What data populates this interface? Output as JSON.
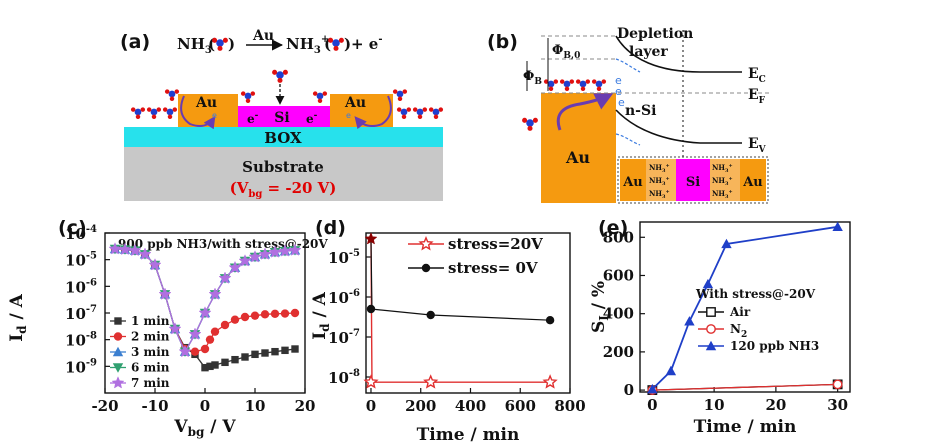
{
  "panel_labels": {
    "a": "(a)",
    "b": "(b)",
    "c": "(c)",
    "d": "(d)",
    "e": "(e)"
  },
  "panel_a": {
    "reaction": {
      "reactant": "NH",
      "reactant_sub": "3",
      "catalyst": "Au",
      "product": "NH",
      "product_sub": "3",
      "product_sup": "+",
      "electron": "+ e",
      "electron_sup": "-"
    },
    "au_left": "Au",
    "au_right": "Au",
    "si": "Si",
    "electron": "e",
    "electron_sup": "-",
    "box": "BOX",
    "substrate": "Substrate",
    "vbg_label": "(V",
    "vbg_sub": "bg",
    "vbg_value": " = -20 V)",
    "colors": {
      "au": "#f59a10",
      "si": "#ff00ff",
      "box": "#27e1ec",
      "substrate": "#c8c8c8",
      "vbg": "#e00000"
    }
  },
  "panel_b": {
    "phi_b0": "Φ",
    "phi_b0_sub": "B,0",
    "phi_b": "Φ",
    "phi_b_sub": "B",
    "depletion_1": "Depletion",
    "depletion_2": "layer",
    "ec": "E",
    "ec_sub": "C",
    "ef": "E",
    "ef_sub": "F",
    "ev": "E",
    "ev_sub": "V",
    "nsi": "n-Si",
    "au": "Au",
    "electron": "e",
    "inset": {
      "au_left": "Au",
      "si": "Si",
      "au_right": "Au",
      "nh": "NH",
      "nh_sub": "3",
      "nh_sup": "+"
    }
  },
  "chart_data": [
    {
      "panel": "c",
      "type": "line",
      "title": "900 ppb NH3/with stress@-20V",
      "xlabel": "Vbg / V",
      "ylabel": "Id / A",
      "xlim": [
        -20,
        20
      ],
      "ylim_log10": [
        -10,
        -4
      ],
      "xticks": [
        -20,
        -10,
        0,
        10,
        20
      ],
      "yticks": [
        -9,
        -8,
        -7,
        -6,
        -5,
        -4
      ],
      "ytick_labels": [
        "10",
        "10",
        "10",
        "10",
        "10",
        "10"
      ],
      "ytick_exps": [
        "-9",
        "-8",
        "-7",
        "-6",
        "-5",
        "-4"
      ],
      "series": [
        {
          "name": "1 min",
          "color": "#333333",
          "marker": "square",
          "x": [
            -18,
            -16,
            -14,
            -12,
            -10,
            -8,
            -6,
            -4,
            -2,
            0,
            1,
            2,
            4,
            6,
            8,
            10,
            12,
            14,
            16,
            18
          ],
          "y": [
            -4.6,
            -4.62,
            -4.66,
            -4.8,
            -5.2,
            -6.3,
            -7.6,
            -8.3,
            -8.55,
            -9.05,
            -9.0,
            -8.95,
            -8.85,
            -8.75,
            -8.65,
            -8.55,
            -8.5,
            -8.45,
            -8.4,
            -8.35
          ]
        },
        {
          "name": "2 min",
          "color": "#e03030",
          "marker": "circle",
          "x": [
            -18,
            -16,
            -14,
            -12,
            -10,
            -8,
            -6,
            -4,
            -2,
            0,
            1,
            2,
            4,
            6,
            8,
            10,
            12,
            14,
            16,
            18
          ],
          "y": [
            -4.6,
            -4.62,
            -4.66,
            -4.8,
            -5.2,
            -6.3,
            -7.6,
            -8.35,
            -8.45,
            -8.35,
            -8.0,
            -7.7,
            -7.45,
            -7.25,
            -7.15,
            -7.1,
            -7.05,
            -7.03,
            -7.02,
            -7.0
          ]
        },
        {
          "name": "3 min",
          "color": "#3b7fd0",
          "marker": "triangle",
          "x": [
            -18,
            -16,
            -14,
            -12,
            -10,
            -8,
            -6,
            -4,
            -2,
            0,
            2,
            4,
            6,
            8,
            10,
            12,
            14,
            16,
            18
          ],
          "y": [
            -4.6,
            -4.62,
            -4.66,
            -4.8,
            -5.2,
            -6.3,
            -7.6,
            -8.45,
            -7.8,
            -7.0,
            -6.3,
            -5.7,
            -5.3,
            -5.05,
            -4.9,
            -4.8,
            -4.72,
            -4.68,
            -4.65
          ]
        },
        {
          "name": "6 min",
          "color": "#30a070",
          "marker": "triangle-down",
          "x": [
            -18,
            -16,
            -14,
            -12,
            -10,
            -8,
            -6,
            -4,
            -2,
            0,
            2,
            4,
            6,
            8,
            10,
            12,
            14,
            16,
            18
          ],
          "y": [
            -4.6,
            -4.62,
            -4.66,
            -4.8,
            -5.2,
            -6.3,
            -7.6,
            -8.45,
            -7.8,
            -7.0,
            -6.3,
            -5.7,
            -5.3,
            -5.05,
            -4.9,
            -4.8,
            -4.72,
            -4.68,
            -4.65
          ]
        },
        {
          "name": "7 min",
          "color": "#b070e0",
          "marker": "star",
          "x": [
            -18,
            -16,
            -14,
            -12,
            -10,
            -8,
            -6,
            -4,
            -2,
            0,
            2,
            4,
            6,
            8,
            10,
            12,
            14,
            16,
            18
          ],
          "y": [
            -4.6,
            -4.62,
            -4.66,
            -4.8,
            -5.2,
            -6.3,
            -7.6,
            -8.45,
            -7.8,
            -7.0,
            -6.3,
            -5.7,
            -5.3,
            -5.05,
            -4.9,
            -4.8,
            -4.72,
            -4.68,
            -4.65
          ]
        }
      ]
    },
    {
      "panel": "d",
      "type": "line",
      "xlabel": "Time / min",
      "ylabel": "Id / A",
      "xlim": [
        -20,
        800
      ],
      "ylim_log10": [
        -8.4,
        -4.4
      ],
      "xticks": [
        0,
        200,
        400,
        600,
        800
      ],
      "yticks": [
        -8,
        -7,
        -6,
        -5
      ],
      "ytick_labels": [
        "10",
        "10",
        "10",
        "10"
      ],
      "ytick_exps": [
        "-8",
        "-7",
        "-6",
        "-5"
      ],
      "series": [
        {
          "name": "stress=20V",
          "color": "#e03030",
          "marker": "star-open",
          "x": [
            0,
            240,
            720
          ],
          "y": [
            -8.13,
            -8.13,
            -8.13
          ],
          "jump_from": -4.55
        },
        {
          "name": "stress= 0V",
          "color": "#111111",
          "marker": "circle",
          "x": [
            0,
            240,
            720
          ],
          "y": [
            -6.3,
            -6.45,
            -6.58
          ]
        }
      ],
      "highlight_point": {
        "x": 0,
        "y": -4.55,
        "color": "#8b0000"
      }
    },
    {
      "panel": "e",
      "type": "line",
      "legend_title": "With stress@-20V",
      "xlabel": "Time / min",
      "ylabel": "SI / %",
      "xlim": [
        -2,
        32
      ],
      "ylim": [
        -10,
        880
      ],
      "xticks": [
        0,
        10,
        20,
        30
      ],
      "yticks": [
        0,
        200,
        400,
        600,
        800
      ],
      "series": [
        {
          "name": "Air",
          "color": "#111111",
          "marker": "square-open",
          "x": [
            0,
            30
          ],
          "y": [
            0,
            30
          ]
        },
        {
          "name": "N2",
          "name_main": "N",
          "name_sub": "2",
          "color": "#e03030",
          "marker": "circle-open",
          "x": [
            0,
            30
          ],
          "y": [
            0,
            30
          ]
        },
        {
          "name": "120 ppb NH3",
          "color": "#1f3fc8",
          "marker": "triangle",
          "x": [
            0,
            3,
            6,
            9,
            12,
            30
          ],
          "y": [
            5,
            100,
            360,
            555,
            765,
            855
          ]
        }
      ]
    }
  ]
}
